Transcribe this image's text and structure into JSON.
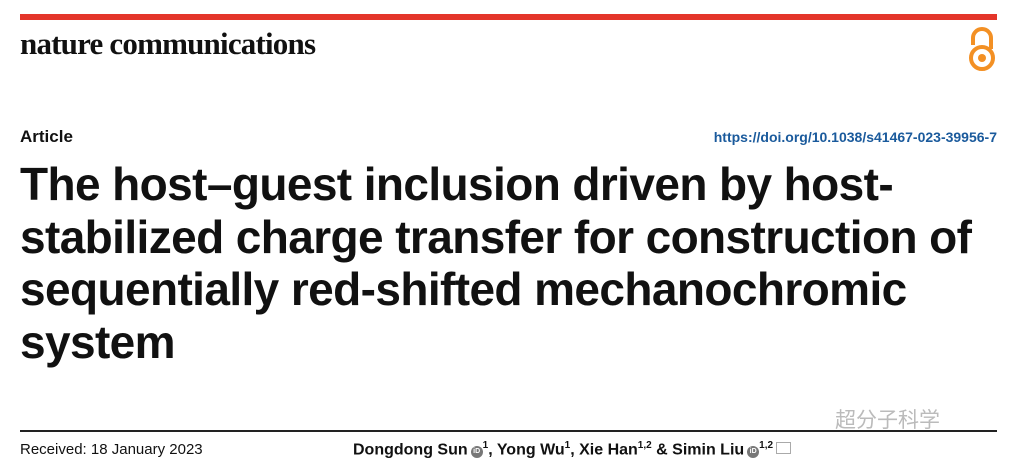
{
  "header": {
    "journal": "nature communications",
    "accent_color": "#e4352a",
    "open_access_icon": "open-lock-icon",
    "open_access_color": "#f39024"
  },
  "article": {
    "type": "Article",
    "doi": "https://doi.org/10.1038/s41467-023-39956-7",
    "title": "The host–guest inclusion driven by host-stabilized charge transfer for construction of sequentially red-shifted mechanochromic system",
    "received": "Received: 18 January 2023",
    "authors": [
      {
        "name": "Dongdong Sun",
        "orcid": true,
        "aff": "1"
      },
      {
        "name": "Yong Wu",
        "orcid": false,
        "aff": "1"
      },
      {
        "name": "Xie Han",
        "orcid": false,
        "aff": "1,2"
      },
      {
        "name": "Simin Liu",
        "orcid": true,
        "aff": "1,2"
      }
    ],
    "sep1": ", ",
    "sep2": ", ",
    "sep3": " & "
  },
  "watermark": "超分子科学"
}
